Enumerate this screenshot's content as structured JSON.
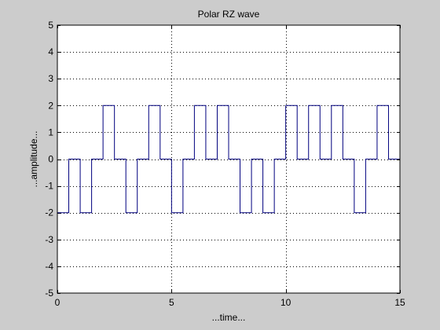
{
  "chart_data": {
    "type": "line",
    "title": "Polar RZ wave",
    "xlabel": "...time...",
    "ylabel": "...amplitude...",
    "xlim": [
      0,
      15
    ],
    "ylim": [
      -5,
      5
    ],
    "xticks": [
      0,
      5,
      10,
      15
    ],
    "yticks": [
      -5,
      -4,
      -3,
      -2,
      -1,
      0,
      1,
      2,
      3,
      4,
      5
    ],
    "grid": true,
    "series": [
      {
        "x": [
          0,
          0.5,
          0.5,
          1,
          1,
          1.5,
          1.5,
          2,
          2,
          2.5,
          2.5,
          3,
          3,
          3.5,
          3.5,
          4,
          4,
          4.5,
          4.5,
          5,
          5,
          5.5,
          5.5,
          6,
          6,
          6.5,
          6.5,
          7,
          7,
          7.5,
          7.5,
          8,
          8,
          8.5,
          8.5,
          9,
          9,
          9.5,
          9.5,
          10,
          10,
          10.5,
          10.5,
          11,
          11,
          11.5,
          11.5,
          12,
          12,
          12.5,
          12.5,
          13,
          13,
          13.5,
          13.5,
          14,
          14,
          14.5,
          14.5,
          15
        ],
        "y": [
          -2,
          -2,
          0,
          0,
          -2,
          -2,
          0,
          0,
          2,
          2,
          0,
          0,
          -2,
          -2,
          0,
          0,
          2,
          2,
          0,
          0,
          -2,
          -2,
          0,
          0,
          2,
          2,
          0,
          0,
          2,
          2,
          0,
          0,
          -2,
          -2,
          0,
          0,
          -2,
          -2,
          0,
          0,
          2,
          2,
          0,
          0,
          2,
          2,
          0,
          0,
          2,
          2,
          0,
          0,
          -2,
          -2,
          0,
          0,
          2,
          2,
          0,
          0
        ]
      }
    ],
    "line_color": "#00007f"
  },
  "colors": {
    "figure_bg": "#cccccc",
    "axes_bg": "#ffffff"
  }
}
